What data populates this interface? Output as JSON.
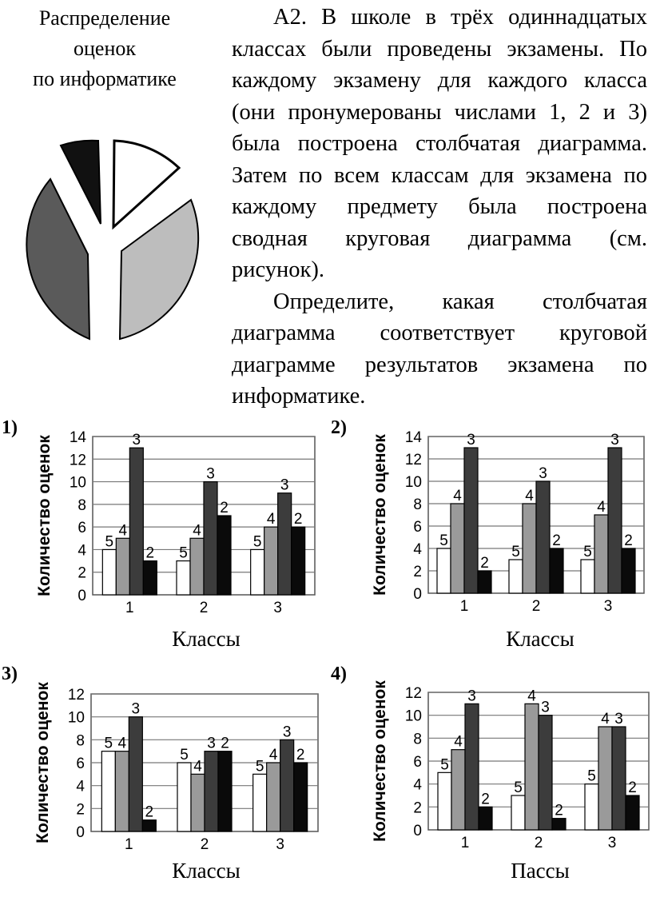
{
  "pie_caption": [
    "Распределение",
    "оценок",
    "по информатике"
  ],
  "problem": {
    "paragraph1": "А2. В школе в трёх одиннадцатых классах были проведены экзамены. По каждому экзамену для каждого класса (они пронумерованы числами 1, 2 и 3) была построена столбчатая диаграмма. Затем по всем классам для экзамена по каждому предмету была построена сводная круговая диаграмма (см. рисунок).",
    "paragraph2_main": "Определите, какая столбчатая диаграмма соответствует круговой диаграмме результатов экзамена по",
    "paragraph2_last": "информатике."
  },
  "pie_colors": {
    "white": "#ffffff",
    "light_gray": "#bdbdbd",
    "dark_gray": "#5a5a5a",
    "black": "#111111"
  },
  "chart_data": [
    {
      "type": "bar",
      "number_label": "1)",
      "ylabel": "Количество оценок",
      "xlabel": "Классы",
      "categories": [
        "1",
        "2",
        "3"
      ],
      "ylim": [
        0,
        14
      ],
      "yticks": [
        0,
        2,
        4,
        6,
        8,
        10,
        12,
        14
      ],
      "series": [
        {
          "name": "5",
          "values": [
            4,
            3,
            4
          ]
        },
        {
          "name": "4",
          "values": [
            5,
            5,
            6
          ]
        },
        {
          "name": "3",
          "values": [
            13,
            10,
            9
          ]
        },
        {
          "name": "2",
          "values": [
            3,
            7,
            6
          ]
        }
      ]
    },
    {
      "type": "bar",
      "number_label": "2)",
      "ylabel": "Количество оценок",
      "xlabel": "Классы",
      "categories": [
        "1",
        "2",
        "3"
      ],
      "ylim": [
        0,
        14
      ],
      "yticks": [
        0,
        2,
        4,
        6,
        8,
        10,
        12,
        14
      ],
      "series": [
        {
          "name": "5",
          "values": [
            4,
            3,
            3
          ]
        },
        {
          "name": "4",
          "values": [
            8,
            8,
            7
          ]
        },
        {
          "name": "3",
          "values": [
            13,
            10,
            13
          ]
        },
        {
          "name": "2",
          "values": [
            2,
            4,
            4
          ]
        }
      ]
    },
    {
      "type": "bar",
      "number_label": "3)",
      "ylabel": "Количество оценок",
      "xlabel": "Классы",
      "categories": [
        "1",
        "2",
        "3"
      ],
      "ylim": [
        0,
        12
      ],
      "yticks": [
        0,
        2,
        4,
        6,
        8,
        10,
        12
      ],
      "series": [
        {
          "name": "5",
          "values": [
            7,
            6,
            5
          ]
        },
        {
          "name": "4",
          "values": [
            7,
            5,
            6
          ]
        },
        {
          "name": "3",
          "values": [
            10,
            7,
            8
          ]
        },
        {
          "name": "2",
          "values": [
            1,
            7,
            6
          ]
        }
      ]
    },
    {
      "type": "bar",
      "number_label": "4)",
      "ylabel": "Количество оценок",
      "xlabel": "Пассы",
      "categories": [
        "1",
        "2",
        "3"
      ],
      "ylim": [
        0,
        12
      ],
      "yticks": [
        0,
        2,
        4,
        6,
        8,
        10,
        12
      ],
      "series": [
        {
          "name": "5",
          "values": [
            5,
            3,
            4
          ]
        },
        {
          "name": "4",
          "values": [
            7,
            11,
            9
          ]
        },
        {
          "name": "3",
          "values": [
            11,
            10,
            9
          ]
        },
        {
          "name": "2",
          "values": [
            2,
            1,
            3
          ]
        }
      ]
    }
  ],
  "bar_colors": [
    "#ffffff",
    "#9a9a9a",
    "#3c3c3c",
    "#0a0a0a"
  ]
}
